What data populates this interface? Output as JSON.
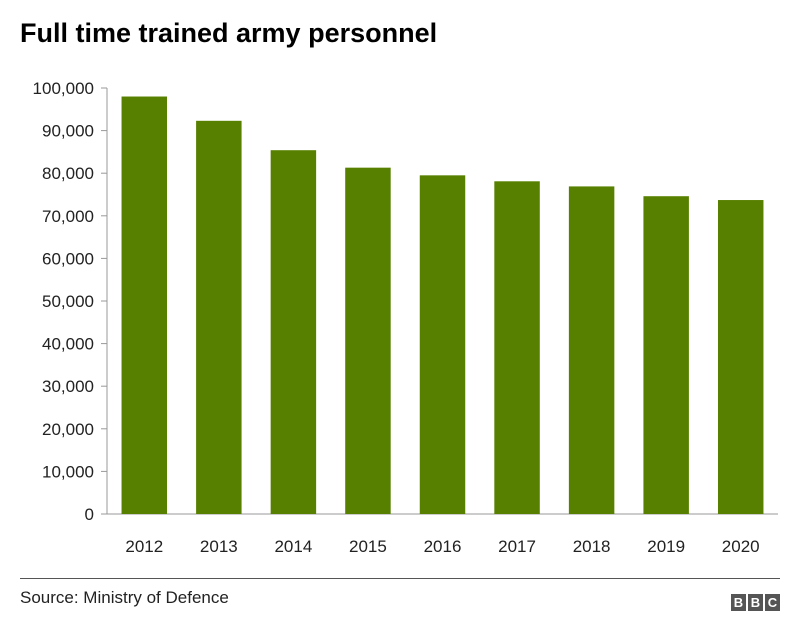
{
  "chart_data": {
    "type": "bar",
    "title": "Full time trained army personnel",
    "categories": [
      "2012",
      "2013",
      "2014",
      "2015",
      "2016",
      "2017",
      "2018",
      "2019",
      "2020"
    ],
    "values": [
      98000,
      92300,
      85400,
      81300,
      79500,
      78100,
      76900,
      74600,
      73700
    ],
    "ylim": [
      0,
      100000
    ],
    "yticks": [
      0,
      10000,
      20000,
      30000,
      40000,
      50000,
      60000,
      70000,
      80000,
      90000,
      100000
    ],
    "ytick_labels": [
      "0",
      "10,000",
      "20,000",
      "30,000",
      "40,000",
      "50,000",
      "60,000",
      "70,000",
      "80,000",
      "90,000",
      "100,000"
    ],
    "grid": false,
    "bar_color": "#588000",
    "axis_color": "#999999"
  },
  "footer": {
    "source": "Source: Ministry of Defence",
    "logo": [
      "B",
      "B",
      "C"
    ]
  }
}
